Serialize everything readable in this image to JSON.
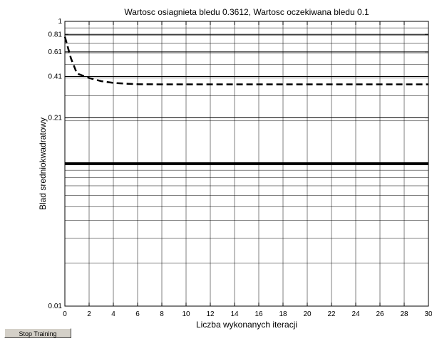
{
  "chart_data": {
    "type": "line",
    "title": "Wartosc osiagnieta bledu 0.3612, Wartosc oczekiwana bledu 0.1",
    "xlabel": "Liczba wykonanych iteracji",
    "ylabel": "Blad sredniokwadratowy",
    "xlim": [
      0,
      30
    ],
    "ylim": [
      0.01,
      1
    ],
    "yscale": "log",
    "grid": true,
    "x_ticks": [
      "0",
      "2",
      "4",
      "6",
      "8",
      "10",
      "12",
      "14",
      "16",
      "18",
      "20",
      "22",
      "24",
      "26",
      "28",
      "30"
    ],
    "y_ticks": [
      "0.01",
      "0.21",
      "0.41",
      "0.61",
      "0.81",
      "1"
    ],
    "series": [
      {
        "style": "dashed",
        "x": [
          0,
          0.5,
          1,
          2,
          3,
          4,
          5,
          6,
          8,
          10,
          15,
          20,
          25,
          30
        ],
        "values": [
          0.78,
          0.55,
          0.43,
          0.4,
          0.38,
          0.37,
          0.365,
          0.362,
          0.3612,
          0.3612,
          0.3612,
          0.3612,
          0.3612,
          0.3612
        ]
      },
      {
        "style": "solid-thick",
        "x": [
          0,
          30
        ],
        "values": [
          0.1,
          0.1
        ]
      }
    ]
  },
  "stop_button": {
    "label": "Stop Training"
  }
}
